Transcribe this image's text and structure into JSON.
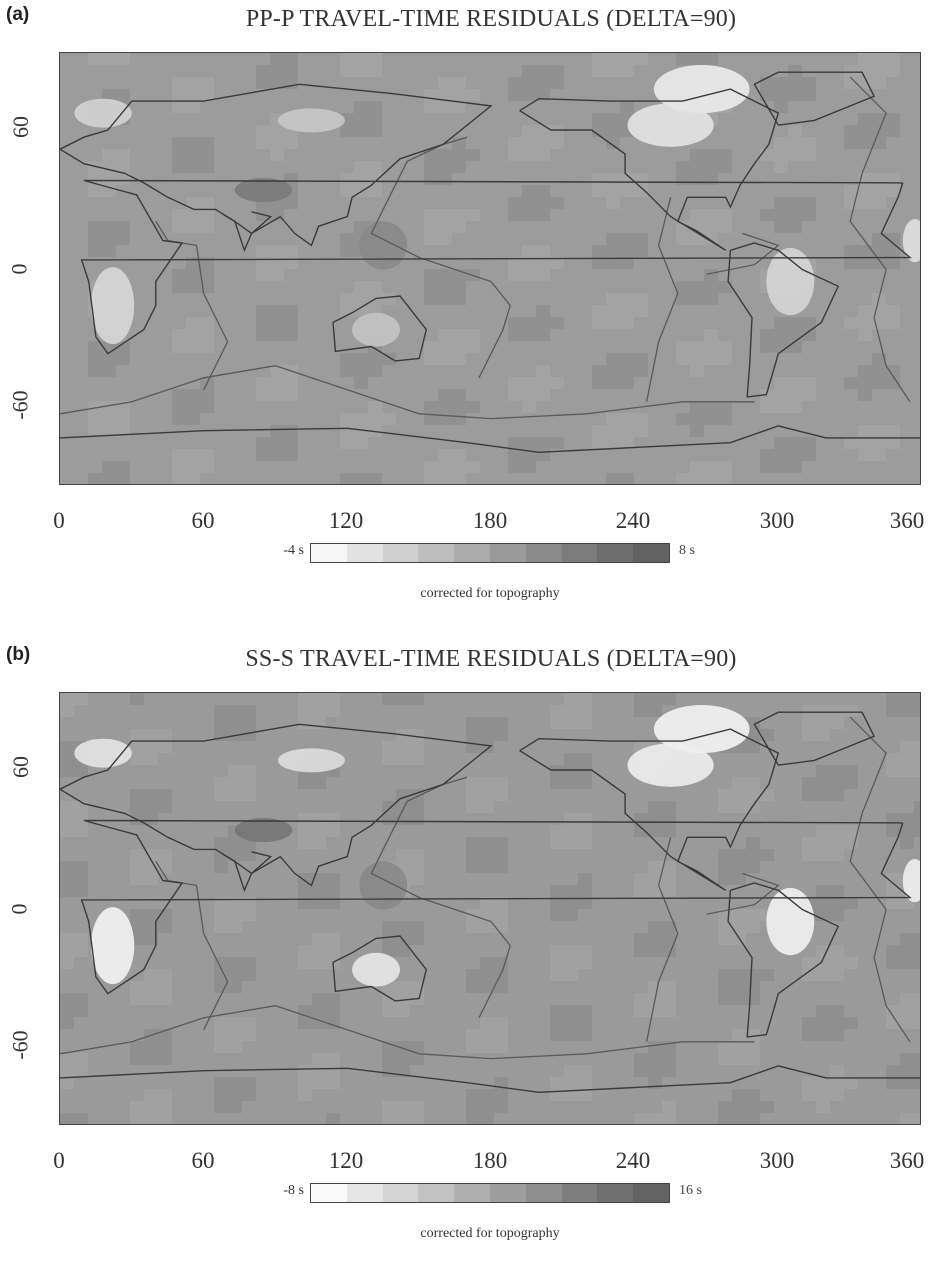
{
  "panels": [
    {
      "label": "(a)",
      "title": "PP-P TRAVEL-TIME RESIDUALS (DELTA=90)",
      "colorbar_min": "-4 s",
      "colorbar_max": "8 s",
      "caption": "corrected for topography",
      "colorbar_colors": [
        "#f6f6f6",
        "#e2e2e2",
        "#d0d0d0",
        "#bdbdbd",
        "#ababab",
        "#9a9a9a",
        "#8a8a8a",
        "#7b7b7b",
        "#6e6e6e",
        "#626262"
      ],
      "background": "#9c9c9c",
      "anomalies": [
        {
          "region": "Greenland / Canada",
          "level": "#ececec"
        },
        {
          "region": "Eastern Canada",
          "level": "#e4e4e4"
        },
        {
          "region": "South America interior",
          "level": "#d6d6d6"
        },
        {
          "region": "Southern Africa",
          "level": "#d8d8d8"
        },
        {
          "region": "West Africa",
          "level": "#e0e0e0"
        },
        {
          "region": "Scandinavia",
          "level": "#d4d4d4"
        },
        {
          "region": "Siberia",
          "level": "#c8c8c8"
        },
        {
          "region": "Australia",
          "level": "#c4c4c4"
        },
        {
          "region": "Tibet",
          "level": "#7a7a7a"
        },
        {
          "region": "Western Pacific",
          "level": "#8a8a8a"
        }
      ]
    },
    {
      "label": "(b)",
      "title": "SS-S TRAVEL-TIME RESIDUALS (DELTA=90)",
      "colorbar_min": "-8 s",
      "colorbar_max": "16 s",
      "caption": "corrected for topography",
      "colorbar_colors": [
        "#fafafa",
        "#e6e6e6",
        "#d4d4d4",
        "#c2c2c2",
        "#afafaf",
        "#9e9e9e",
        "#8e8e8e",
        "#7e7e7e",
        "#707070",
        "#636363"
      ],
      "background": "#9a9a9a",
      "anomalies": [
        {
          "region": "Greenland / Canada",
          "level": "#f4f4f4"
        },
        {
          "region": "Eastern Canada",
          "level": "#eeeeee"
        },
        {
          "region": "South America interior",
          "level": "#f2f2f2"
        },
        {
          "region": "Southern Africa",
          "level": "#f4f4f4"
        },
        {
          "region": "West Africa",
          "level": "#f0f0f0"
        },
        {
          "region": "Scandinavia",
          "level": "#e6e6e6"
        },
        {
          "region": "Siberia",
          "level": "#dedede"
        },
        {
          "region": "Australia",
          "level": "#e8e8e8"
        },
        {
          "region": "Tibet",
          "level": "#767676"
        },
        {
          "region": "Western Pacific",
          "level": "#888888"
        }
      ]
    }
  ],
  "axes": {
    "x_ticks": [
      "0",
      "60",
      "120",
      "180",
      "240",
      "300",
      "360"
    ],
    "y_ticks": [
      "60",
      "0",
      "-60"
    ]
  },
  "colors": {
    "frame": "#444444",
    "coastline": "#3a3a3a",
    "plate_boundary": "#5a5a5a"
  }
}
